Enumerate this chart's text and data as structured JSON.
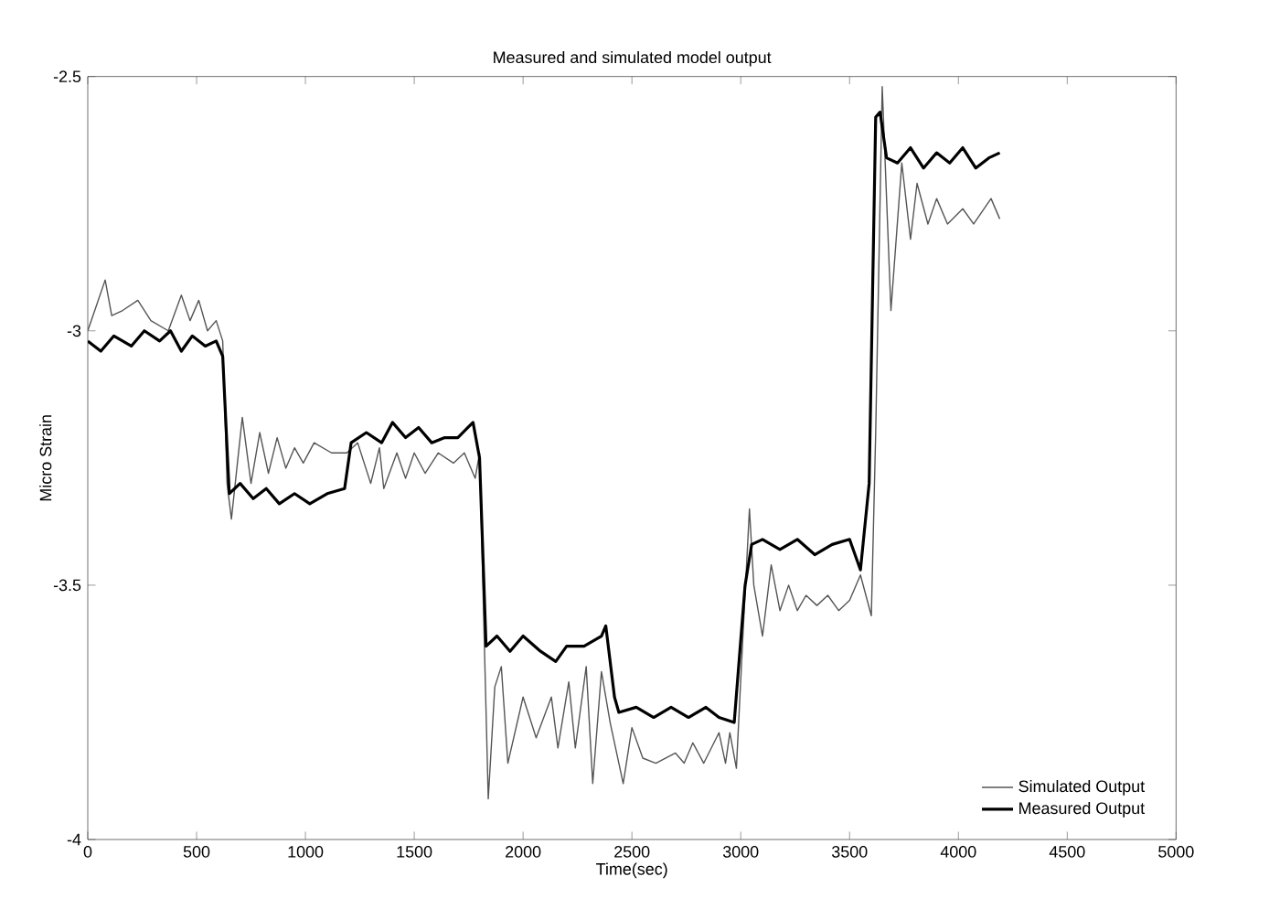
{
  "chart_data": {
    "type": "line",
    "title": "Measured and simulated model output",
    "xlabel": "Time(sec)",
    "ylabel": "Micro Strain",
    "xlim": [
      0,
      5000
    ],
    "ylim": [
      -4,
      -2.5
    ],
    "xticks": [
      0,
      500,
      1000,
      1500,
      2000,
      2500,
      3000,
      3500,
      4000,
      4500,
      5000
    ],
    "yticks": [
      -4,
      -3.5,
      -3,
      -2.5
    ],
    "grid": false,
    "legend": "bottom right",
    "marker": "none",
    "line_style": "solid",
    "series": [
      {
        "name": "Simulated Output",
        "color": "#555555",
        "x": [
          0,
          40,
          80,
          110,
          160,
          230,
          290,
          370,
          430,
          470,
          510,
          550,
          590,
          620,
          640,
          660,
          710,
          750,
          790,
          830,
          870,
          910,
          950,
          990,
          1040,
          1120,
          1190,
          1240,
          1300,
          1340,
          1360,
          1420,
          1460,
          1500,
          1550,
          1610,
          1680,
          1730,
          1780,
          1800,
          1840,
          1870,
          1900,
          1930,
          2000,
          2060,
          2130,
          2160,
          2210,
          2240,
          2290,
          2320,
          2360,
          2400,
          2460,
          2500,
          2550,
          2610,
          2700,
          2740,
          2780,
          2830,
          2900,
          2930,
          2950,
          2980,
          3010,
          3040,
          3060,
          3100,
          3140,
          3180,
          3220,
          3260,
          3300,
          3350,
          3400,
          3450,
          3500,
          3550,
          3600,
          3620,
          3650,
          3690,
          3740,
          3780,
          3810,
          3860,
          3900,
          3950,
          4020,
          4070,
          4150,
          4190
        ],
        "values": [
          -3.0,
          -2.95,
          -2.9,
          -2.97,
          -2.96,
          -2.94,
          -2.98,
          -3.0,
          -2.93,
          -2.98,
          -2.94,
          -3.0,
          -2.98,
          -3.02,
          -3.3,
          -3.37,
          -3.17,
          -3.3,
          -3.2,
          -3.28,
          -3.21,
          -3.27,
          -3.23,
          -3.26,
          -3.22,
          -3.24,
          -3.24,
          -3.22,
          -3.3,
          -3.23,
          -3.31,
          -3.24,
          -3.29,
          -3.24,
          -3.28,
          -3.24,
          -3.26,
          -3.24,
          -3.29,
          -3.24,
          -3.92,
          -3.7,
          -3.66,
          -3.85,
          -3.72,
          -3.8,
          -3.72,
          -3.82,
          -3.69,
          -3.82,
          -3.66,
          -3.89,
          -3.67,
          -3.77,
          -3.89,
          -3.78,
          -3.84,
          -3.85,
          -3.83,
          -3.85,
          -3.81,
          -3.85,
          -3.79,
          -3.85,
          -3.79,
          -3.86,
          -3.6,
          -3.35,
          -3.5,
          -3.6,
          -3.46,
          -3.55,
          -3.5,
          -3.55,
          -3.52,
          -3.54,
          -3.52,
          -3.55,
          -3.53,
          -3.48,
          -3.56,
          -3.2,
          -2.52,
          -2.96,
          -2.67,
          -2.82,
          -2.71,
          -2.79,
          -2.74,
          -2.79,
          -2.76,
          -2.79,
          -2.74,
          -2.78
        ]
      },
      {
        "name": "Measured Output",
        "color": "#000000",
        "x": [
          0,
          60,
          120,
          200,
          260,
          330,
          380,
          430,
          480,
          540,
          590,
          620,
          650,
          700,
          760,
          820,
          880,
          950,
          1020,
          1100,
          1180,
          1210,
          1280,
          1350,
          1400,
          1460,
          1520,
          1580,
          1640,
          1700,
          1770,
          1800,
          1830,
          1880,
          1940,
          2000,
          2080,
          2150,
          2200,
          2280,
          2360,
          2380,
          2420,
          2440,
          2520,
          2600,
          2680,
          2760,
          2840,
          2900,
          2970,
          3020,
          3050,
          3100,
          3180,
          3260,
          3340,
          3420,
          3500,
          3550,
          3590,
          3620,
          3640,
          3670,
          3720,
          3780,
          3840,
          3900,
          3960,
          4020,
          4080,
          4140,
          4190
        ],
        "values": [
          -3.02,
          -3.04,
          -3.01,
          -3.03,
          -3.0,
          -3.02,
          -3.0,
          -3.04,
          -3.01,
          -3.03,
          -3.02,
          -3.05,
          -3.32,
          -3.3,
          -3.33,
          -3.31,
          -3.34,
          -3.32,
          -3.34,
          -3.32,
          -3.31,
          -3.22,
          -3.2,
          -3.22,
          -3.18,
          -3.21,
          -3.19,
          -3.22,
          -3.21,
          -3.21,
          -3.18,
          -3.25,
          -3.62,
          -3.6,
          -3.63,
          -3.6,
          -3.63,
          -3.65,
          -3.62,
          -3.62,
          -3.6,
          -3.58,
          -3.72,
          -3.75,
          -3.74,
          -3.76,
          -3.74,
          -3.76,
          -3.74,
          -3.76,
          -3.77,
          -3.5,
          -3.42,
          -3.41,
          -3.43,
          -3.41,
          -3.44,
          -3.42,
          -3.41,
          -3.47,
          -3.3,
          -2.58,
          -2.57,
          -2.66,
          -2.67,
          -2.64,
          -2.68,
          -2.65,
          -2.67,
          -2.64,
          -2.68,
          -2.66,
          -2.65
        ]
      }
    ]
  }
}
